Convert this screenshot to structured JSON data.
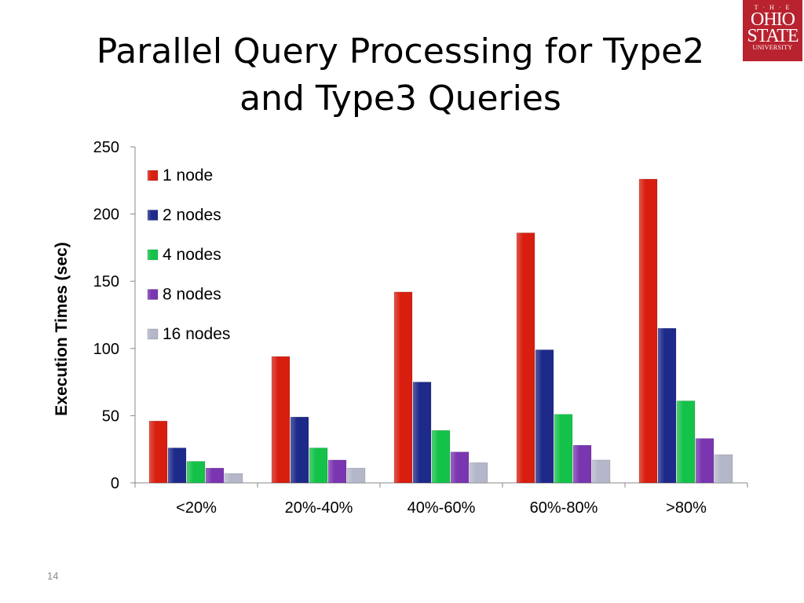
{
  "slide": {
    "title_line1": "Parallel Query Processing for Type2",
    "title_line2": "and Type3 Queries",
    "page_number": "14"
  },
  "logo": {
    "top": "T · H · E",
    "line1": "OHIO",
    "line2": "STATE",
    "line3": "UNIVERSITY"
  },
  "chart_data": {
    "type": "bar",
    "categories": [
      "<20%",
      "20%-40%",
      "40%-60%",
      "60%-80%",
      ">80%"
    ],
    "series": [
      {
        "name": "1 node",
        "color": "#d81e0f",
        "values": [
          46,
          94,
          142,
          186,
          226
        ]
      },
      {
        "name": "2 nodes",
        "color": "#1e2a8a",
        "values": [
          26,
          49,
          75,
          99,
          115
        ]
      },
      {
        "name": "4 nodes",
        "color": "#14c24a",
        "values": [
          16,
          26,
          39,
          51,
          61
        ]
      },
      {
        "name": "8 nodes",
        "color": "#7a35b0",
        "values": [
          11,
          17,
          23,
          28,
          33
        ]
      },
      {
        "name": "16 nodes",
        "color": "#b4b7c9",
        "values": [
          7,
          11,
          15,
          17,
          21
        ]
      }
    ],
    "xlabel": "",
    "ylabel": "Execution Times (sec)",
    "ylim": [
      0,
      250
    ],
    "yticks": [
      0,
      50,
      100,
      150,
      200,
      250
    ],
    "grid": false,
    "legend_position": "top-left"
  }
}
